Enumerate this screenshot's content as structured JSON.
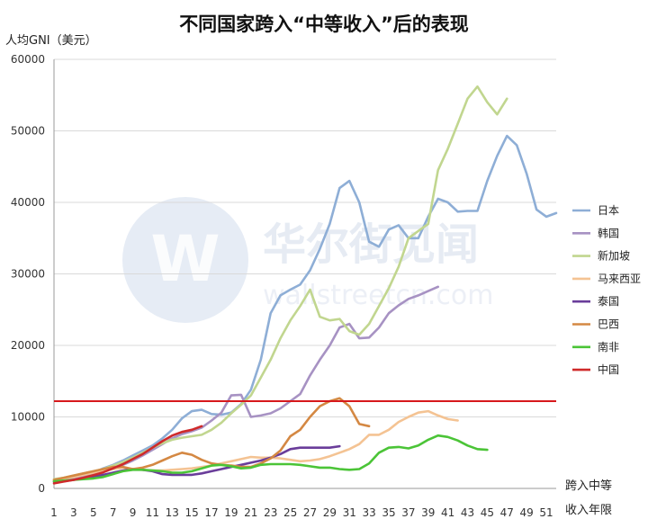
{
  "chart_data": {
    "type": "line",
    "title": "不同国家跨入“中等收入”后的表现",
    "ylabel": "人均GNI（美元）",
    "xlabel_line1": "跨入中等",
    "xlabel_line2": "收入年限",
    "ylim": [
      0,
      60000
    ],
    "yticks": [
      0,
      10000,
      20000,
      30000,
      40000,
      50000,
      60000
    ],
    "xlim": [
      1,
      52
    ],
    "xticks": [
      1,
      3,
      5,
      7,
      9,
      11,
      13,
      15,
      17,
      19,
      21,
      23,
      25,
      27,
      29,
      31,
      33,
      35,
      37,
      39,
      41,
      43,
      45,
      47,
      49,
      51
    ],
    "grid": "horizontal",
    "legend_position": "right",
    "reference_line": {
      "y": 12200,
      "color": "#d7191c"
    },
    "watermark": {
      "text": "华尔街见闻",
      "subtext": "wallstreetcn.com"
    },
    "series": [
      {
        "name": "日本",
        "color": "#8eaed6",
        "values": [
          1000,
          1300,
          1600,
          1900,
          2200,
          2800,
          3300,
          3900,
          4600,
          5300,
          6000,
          7000,
          8200,
          9800,
          10800,
          11000,
          10400,
          10300,
          10600,
          11800,
          13800,
          18000,
          24500,
          27000,
          27800,
          28500,
          30500,
          33500,
          37000,
          42000,
          43000,
          40000,
          34500,
          33800,
          36200,
          36800,
          35000,
          35000,
          38000,
          40500,
          40000,
          38700,
          38800,
          38800,
          43000,
          46500,
          49300,
          48000,
          44000,
          39000,
          38000,
          38500
        ]
      },
      {
        "name": "韩国",
        "color": "#a792c3",
        "values": [
          1000,
          1200,
          1500,
          1800,
          2100,
          2500,
          2900,
          3300,
          3900,
          4600,
          5400,
          6200,
          7000,
          7600,
          8000,
          8500,
          9500,
          10600,
          13000,
          13100,
          10000,
          10200,
          10500,
          11200,
          12200,
          13200,
          15800,
          18000,
          20000,
          22500,
          23000,
          21000,
          21100,
          22500,
          24500,
          25600,
          26500,
          27000,
          27600,
          28200
        ]
      },
      {
        "name": "新加坡",
        "color": "#c1d68f",
        "values": [
          1300,
          1500,
          1800,
          2100,
          2400,
          2700,
          3200,
          3700,
          4300,
          5000,
          5700,
          6300,
          6800,
          7100,
          7300,
          7500,
          8200,
          9200,
          10500,
          11700,
          13000,
          15500,
          18000,
          21000,
          23500,
          25500,
          27800,
          24000,
          23500,
          23700,
          22000,
          21500,
          23000,
          25500,
          28000,
          31000,
          35000,
          36000,
          37000,
          44500,
          47500,
          51000,
          54500,
          56200,
          54000,
          52300,
          54500
        ]
      },
      {
        "name": "马来西亚",
        "color": "#f4c393",
        "values": [
          1200,
          1400,
          1600,
          1900,
          2200,
          2500,
          2700,
          2900,
          2700,
          2600,
          2500,
          2500,
          2600,
          2700,
          2800,
          3000,
          3200,
          3500,
          3800,
          4100,
          4400,
          4300,
          4300,
          4200,
          4000,
          3800,
          3900,
          4100,
          4500,
          5000,
          5500,
          6200,
          7500,
          7500,
          8200,
          9300,
          10000,
          10600,
          10800,
          10200,
          9700,
          9500
        ]
      },
      {
        "name": "泰国",
        "color": "#6a3d9a",
        "values": [
          900,
          1000,
          1200,
          1400,
          1600,
          1900,
          2200,
          2500,
          2700,
          2600,
          2400,
          2000,
          1900,
          1900,
          1900,
          2100,
          2400,
          2700,
          3000,
          3300,
          3600,
          3900,
          4300,
          4800,
          5500,
          5700,
          5700,
          5700,
          5700,
          5900
        ]
      },
      {
        "name": "巴西",
        "color": "#d48843",
        "values": [
          1200,
          1500,
          1800,
          2100,
          2400,
          2700,
          3000,
          3000,
          2700,
          2900,
          3300,
          3900,
          4500,
          5000,
          4700,
          4000,
          3500,
          3300,
          3200,
          3000,
          3000,
          3500,
          4200,
          5300,
          7300,
          8200,
          10000,
          11500,
          12200,
          12600,
          11500,
          9000,
          8700
        ]
      },
      {
        "name": "南非",
        "color": "#4bc437",
        "values": [
          1000,
          1100,
          1200,
          1300,
          1400,
          1600,
          2000,
          2400,
          2600,
          2600,
          2500,
          2400,
          2200,
          2200,
          2400,
          2800,
          3200,
          3300,
          3100,
          2800,
          2900,
          3300,
          3400,
          3400,
          3400,
          3300,
          3100,
          2900,
          2900,
          2700,
          2600,
          2700,
          3500,
          5000,
          5700,
          5800,
          5600,
          6000,
          6800,
          7400,
          7200,
          6700,
          6000,
          5500,
          5400
        ]
      },
      {
        "name": "中国",
        "color": "#cf2a2a",
        "values": [
          700,
          950,
          1200,
          1500,
          1850,
          2250,
          2800,
          3400,
          4100,
          4800,
          5700,
          6600,
          7400,
          7900,
          8200,
          8700
        ]
      }
    ]
  }
}
